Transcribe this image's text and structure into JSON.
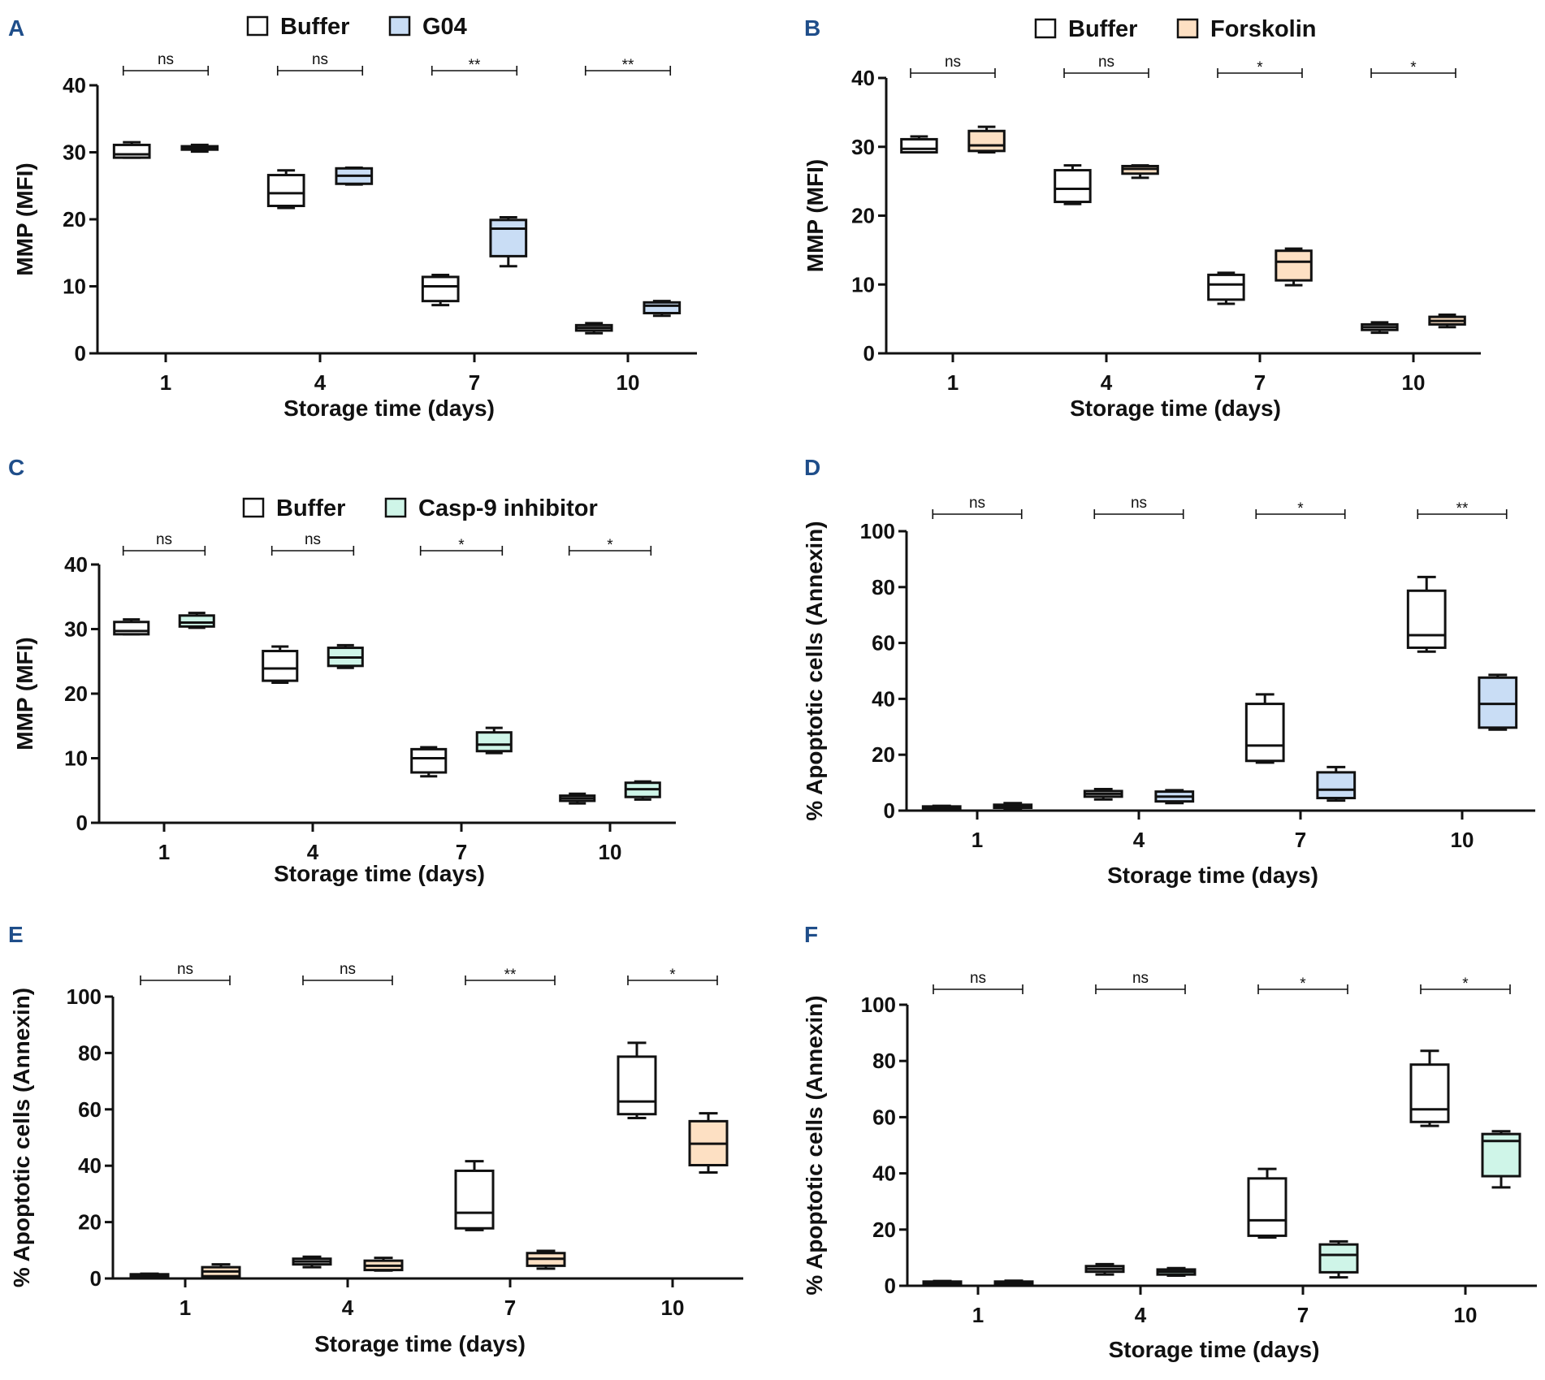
{
  "figure": {
    "colors": {
      "buffer": "#ffffff",
      "G04": "#c9ddf5",
      "Forskolin": "#fde0c3",
      "Casp-9 inhibitor": "#cff5e8",
      "panel_label": "#1f4e8a",
      "stroke": "#111111"
    }
  },
  "chart_data": [
    {
      "panel": "A",
      "type": "box",
      "legend": [
        "Buffer",
        "G04"
      ],
      "legend_placement": "top-center",
      "xlabel": "Storage time (days)",
      "ylabel": "MMP (MFI)",
      "ylim": [
        0,
        40
      ],
      "yticks": [
        "0",
        "10",
        "20",
        "30",
        "40"
      ],
      "categories": [
        "1",
        "4",
        "7",
        "10"
      ],
      "significance": [
        "ns",
        "ns",
        "**",
        "**"
      ],
      "series": [
        {
          "name": "Buffer",
          "boxes": [
            {
              "min": 29.2,
              "q1": 29.2,
              "median": 29.7,
              "q3": 31.1,
              "max": 31.5
            },
            {
              "min": 21.7,
              "q1": 22.0,
              "median": 23.9,
              "q3": 26.6,
              "max": 27.3
            },
            {
              "min": 7.2,
              "q1": 7.8,
              "median": 10.0,
              "q3": 11.4,
              "max": 11.7
            },
            {
              "min": 3.0,
              "q1": 3.4,
              "median": 3.8,
              "q3": 4.2,
              "max": 4.5
            }
          ]
        },
        {
          "name": "G04",
          "boxes": [
            {
              "min": 30.1,
              "q1": 30.4,
              "median": 30.6,
              "q3": 30.9,
              "max": 31.1
            },
            {
              "min": 25.2,
              "q1": 25.3,
              "median": 26.5,
              "q3": 27.6,
              "max": 27.7
            },
            {
              "min": 13.0,
              "q1": 14.5,
              "median": 18.6,
              "q3": 19.9,
              "max": 20.3
            },
            {
              "min": 5.6,
              "q1": 6.0,
              "median": 7.1,
              "q3": 7.6,
              "max": 7.8
            }
          ]
        }
      ]
    },
    {
      "panel": "B",
      "type": "box",
      "legend": [
        "Buffer",
        "Forskolin"
      ],
      "legend_placement": "top-center",
      "xlabel": "Storage time (days)",
      "ylabel": "MMP (MFI)",
      "ylim": [
        0,
        40
      ],
      "yticks": [
        "0",
        "10",
        "20",
        "30",
        "40"
      ],
      "categories": [
        "1",
        "4",
        "7",
        "10"
      ],
      "significance": [
        "ns",
        "ns",
        "*",
        "*"
      ],
      "series": [
        {
          "name": "Buffer",
          "boxes": [
            {
              "min": 29.2,
              "q1": 29.2,
              "median": 29.7,
              "q3": 31.1,
              "max": 31.5
            },
            {
              "min": 21.7,
              "q1": 22.0,
              "median": 23.9,
              "q3": 26.6,
              "max": 27.3
            },
            {
              "min": 7.2,
              "q1": 7.8,
              "median": 10.0,
              "q3": 11.4,
              "max": 11.7
            },
            {
              "min": 3.0,
              "q1": 3.4,
              "median": 3.8,
              "q3": 4.2,
              "max": 4.5
            }
          ]
        },
        {
          "name": "Forskolin",
          "boxes": [
            {
              "min": 29.2,
              "q1": 29.4,
              "median": 30.2,
              "q3": 32.3,
              "max": 32.9
            },
            {
              "min": 25.5,
              "q1": 26.1,
              "median": 26.8,
              "q3": 27.2,
              "max": 27.3
            },
            {
              "min": 9.9,
              "q1": 10.6,
              "median": 13.3,
              "q3": 14.9,
              "max": 15.2
            },
            {
              "min": 3.8,
              "q1": 4.2,
              "median": 4.7,
              "q3": 5.3,
              "max": 5.6
            }
          ]
        }
      ]
    },
    {
      "panel": "C",
      "type": "box",
      "legend": [
        "Buffer",
        "Casp-9 inhibitor"
      ],
      "legend_placement": "top-center",
      "xlabel": "Storage time (days)",
      "ylabel": "MMP (MFI)",
      "ylim": [
        0,
        40
      ],
      "yticks": [
        "0",
        "10",
        "20",
        "30",
        "40"
      ],
      "categories": [
        "1",
        "4",
        "7",
        "10"
      ],
      "significance": [
        "ns",
        "ns",
        "*",
        "*"
      ],
      "series": [
        {
          "name": "Buffer",
          "boxes": [
            {
              "min": 29.2,
              "q1": 29.2,
              "median": 29.7,
              "q3": 31.1,
              "max": 31.5
            },
            {
              "min": 21.7,
              "q1": 22.0,
              "median": 23.9,
              "q3": 26.6,
              "max": 27.3
            },
            {
              "min": 7.2,
              "q1": 7.8,
              "median": 10.0,
              "q3": 11.4,
              "max": 11.7
            },
            {
              "min": 3.0,
              "q1": 3.4,
              "median": 3.8,
              "q3": 4.2,
              "max": 4.5
            }
          ]
        },
        {
          "name": "Casp-9 inhibitor",
          "boxes": [
            {
              "min": 30.2,
              "q1": 30.4,
              "median": 31.0,
              "q3": 32.1,
              "max": 32.5
            },
            {
              "min": 24.0,
              "q1": 24.3,
              "median": 25.6,
              "q3": 27.1,
              "max": 27.5
            },
            {
              "min": 10.8,
              "q1": 11.1,
              "median": 12.1,
              "q3": 14.0,
              "max": 14.7
            },
            {
              "min": 3.6,
              "q1": 4.0,
              "median": 5.2,
              "q3": 6.2,
              "max": 6.4
            }
          ]
        }
      ]
    },
    {
      "panel": "D",
      "type": "box",
      "legend": [],
      "xlabel": "Storage time (days)",
      "ylabel": "% Apoptotic cells (Annexin)",
      "ylim": [
        0,
        100
      ],
      "yticks": [
        "0",
        "20",
        "40",
        "60",
        "80",
        "100"
      ],
      "categories": [
        "1",
        "4",
        "7",
        "10"
      ],
      "significance": [
        "ns",
        "ns",
        "*",
        "**"
      ],
      "series": [
        {
          "name": "Buffer",
          "boxes": [
            {
              "min": 0.3,
              "q1": 0.5,
              "median": 1.0,
              "q3": 1.5,
              "max": 1.7
            },
            {
              "min": 4.0,
              "q1": 5.0,
              "median": 6.0,
              "q3": 7.0,
              "max": 7.7
            },
            {
              "min": 17.2,
              "q1": 17.8,
              "median": 23.3,
              "q3": 38.2,
              "max": 41.6
            },
            {
              "min": 56.9,
              "q1": 58.3,
              "median": 62.8,
              "q3": 78.7,
              "max": 83.6
            }
          ]
        },
        {
          "name": "G04",
          "boxes": [
            {
              "min": 0.8,
              "q1": 1.0,
              "median": 1.5,
              "q3": 2.1,
              "max": 2.7
            },
            {
              "min": 2.7,
              "q1": 3.3,
              "median": 5.0,
              "q3": 6.8,
              "max": 7.3
            },
            {
              "min": 3.6,
              "q1": 4.5,
              "median": 7.5,
              "q3": 13.7,
              "max": 15.6
            },
            {
              "min": 29.0,
              "q1": 29.7,
              "median": 38.2,
              "q3": 47.6,
              "max": 48.6
            }
          ]
        }
      ]
    },
    {
      "panel": "E",
      "type": "box",
      "legend": [],
      "xlabel": "Storage time (days)",
      "ylabel": "% Apoptotic cells (Annexin)",
      "ylim": [
        0,
        100
      ],
      "yticks": [
        "0",
        "20",
        "40",
        "60",
        "80",
        "100"
      ],
      "categories": [
        "1",
        "4",
        "7",
        "10"
      ],
      "significance": [
        "ns",
        "ns",
        "**",
        "*"
      ],
      "series": [
        {
          "name": "Buffer",
          "boxes": [
            {
              "min": 0.3,
              "q1": 0.5,
              "median": 1.0,
              "q3": 1.5,
              "max": 1.7
            },
            {
              "min": 4.0,
              "q1": 5.0,
              "median": 6.0,
              "q3": 7.0,
              "max": 7.7
            },
            {
              "min": 17.2,
              "q1": 17.8,
              "median": 23.3,
              "q3": 38.2,
              "max": 41.6
            },
            {
              "min": 56.9,
              "q1": 58.3,
              "median": 62.8,
              "q3": 78.7,
              "max": 83.6
            }
          ]
        },
        {
          "name": "Forskolin",
          "boxes": [
            {
              "min": 0.3,
              "q1": 0.8,
              "median": 2.5,
              "q3": 4.0,
              "max": 5.0
            },
            {
              "min": 2.8,
              "q1": 3.0,
              "median": 4.5,
              "q3": 6.3,
              "max": 7.3
            },
            {
              "min": 3.5,
              "q1": 4.5,
              "median": 7.0,
              "q3": 9.0,
              "max": 9.8
            },
            {
              "min": 37.6,
              "q1": 40.2,
              "median": 47.8,
              "q3": 55.8,
              "max": 58.6
            }
          ]
        }
      ]
    },
    {
      "panel": "F",
      "type": "box",
      "legend": [],
      "xlabel": "Storage time (days)",
      "ylabel": "% Apoptotic cells (Annexin)",
      "ylim": [
        0,
        100
      ],
      "yticks": [
        "0",
        "20",
        "40",
        "60",
        "80",
        "100"
      ],
      "categories": [
        "1",
        "4",
        "7",
        "10"
      ],
      "significance": [
        "ns",
        "ns",
        "*",
        "*"
      ],
      "series": [
        {
          "name": "Buffer",
          "boxes": [
            {
              "min": 0.3,
              "q1": 0.5,
              "median": 1.0,
              "q3": 1.5,
              "max": 1.7
            },
            {
              "min": 4.0,
              "q1": 5.0,
              "median": 6.0,
              "q3": 7.0,
              "max": 7.7
            },
            {
              "min": 17.2,
              "q1": 17.8,
              "median": 23.3,
              "q3": 38.2,
              "max": 41.6
            },
            {
              "min": 56.9,
              "q1": 58.3,
              "median": 62.8,
              "q3": 78.7,
              "max": 83.6
            }
          ]
        },
        {
          "name": "Casp-9 inhibitor",
          "boxes": [
            {
              "min": 0.3,
              "q1": 0.5,
              "median": 1.0,
              "q3": 1.5,
              "max": 1.8
            },
            {
              "min": 3.6,
              "q1": 4.0,
              "median": 5.0,
              "q3": 5.8,
              "max": 6.3
            },
            {
              "min": 3.0,
              "q1": 4.8,
              "median": 11.0,
              "q3": 14.7,
              "max": 15.8
            },
            {
              "min": 35.0,
              "q1": 39.0,
              "median": 51.5,
              "q3": 54.0,
              "max": 55.0
            }
          ]
        }
      ]
    }
  ]
}
